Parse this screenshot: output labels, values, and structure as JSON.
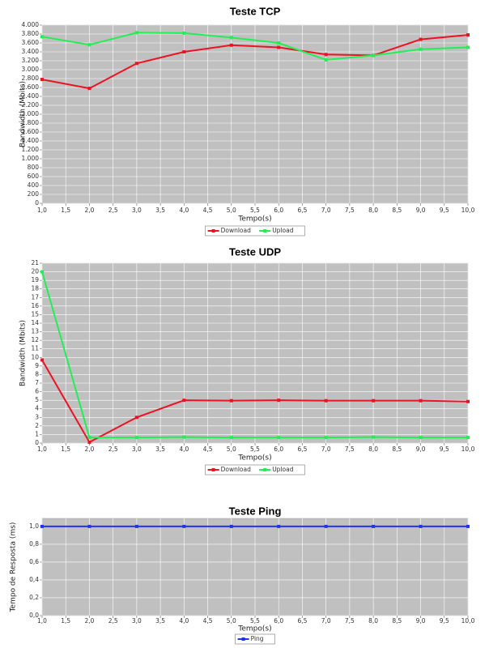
{
  "chart_data": [
    {
      "type": "line",
      "title": "Teste TCP",
      "x_label": "Tempo(s)",
      "y_label": "Bandwidth (Mbits)",
      "x": [
        1,
        2,
        3,
        4,
        5,
        6,
        7,
        8,
        9,
        10
      ],
      "xlim": [
        1,
        10
      ],
      "xticks": [
        {
          "value": 1,
          "label": "1,0"
        },
        {
          "value": 1.5,
          "label": "1,5"
        },
        {
          "value": 2,
          "label": "2,0"
        },
        {
          "value": 2.5,
          "label": "2,5"
        },
        {
          "value": 3,
          "label": "3,0"
        },
        {
          "value": 3.5,
          "label": "3,5"
        },
        {
          "value": 4,
          "label": "4,0"
        },
        {
          "value": 4.5,
          "label": "4,5"
        },
        {
          "value": 5,
          "label": "5,0"
        },
        {
          "value": 5.5,
          "label": "5,5"
        },
        {
          "value": 6,
          "label": "6,0"
        },
        {
          "value": 6.5,
          "label": "6,5"
        },
        {
          "value": 7,
          "label": "7,0"
        },
        {
          "value": 7.5,
          "label": "7,5"
        },
        {
          "value": 8,
          "label": "8,0"
        },
        {
          "value": 8.5,
          "label": "8,5"
        },
        {
          "value": 9,
          "label": "9,0"
        },
        {
          "value": 9.5,
          "label": "9,5"
        },
        {
          "value": 10,
          "label": "10,0"
        }
      ],
      "ylim": [
        0,
        4000
      ],
      "yticks": [
        0,
        200,
        400,
        600,
        800,
        {
          "value": 1000,
          "label": "1.000"
        },
        {
          "value": 1200,
          "label": "1.200"
        },
        {
          "value": 1400,
          "label": "1.400"
        },
        {
          "value": 1600,
          "label": "1.600"
        },
        {
          "value": 1800,
          "label": "1.800"
        },
        {
          "value": 2000,
          "label": "2.000"
        },
        {
          "value": 2200,
          "label": "2.200"
        },
        {
          "value": 2400,
          "label": "2.400"
        },
        {
          "value": 2600,
          "label": "2.600"
        },
        {
          "value": 2800,
          "label": "2.800"
        },
        {
          "value": 3000,
          "label": "3.000"
        },
        {
          "value": 3200,
          "label": "3.200"
        },
        {
          "value": 3400,
          "label": "3.400"
        },
        {
          "value": 3600,
          "label": "3.600"
        },
        {
          "value": 3800,
          "label": "3.800"
        },
        {
          "value": 4000,
          "label": "4.000"
        }
      ],
      "grid": true,
      "legend": "bottom",
      "series": [
        {
          "name": "Download",
          "color": "#ee1122",
          "values": [
            2780,
            2580,
            3140,
            3400,
            3550,
            3500,
            3340,
            3320,
            3680,
            3780
          ]
        },
        {
          "name": "Upload",
          "color": "#22ee55",
          "values": [
            3740,
            3560,
            3830,
            3820,
            3720,
            3600,
            3220,
            3320,
            3460,
            3500
          ]
        }
      ]
    },
    {
      "type": "line",
      "title": "Teste UDP",
      "x_label": "Tempo(s)",
      "y_label": "Bandwidth (Mbits)",
      "x": [
        1,
        2,
        3,
        4,
        5,
        6,
        7,
        8,
        9,
        10
      ],
      "xlim": [
        1,
        10
      ],
      "xticks": [
        {
          "value": 1,
          "label": "1,0"
        },
        {
          "value": 1.5,
          "label": "1,5"
        },
        {
          "value": 2,
          "label": "2,0"
        },
        {
          "value": 2.5,
          "label": "2,5"
        },
        {
          "value": 3,
          "label": "3,0"
        },
        {
          "value": 3.5,
          "label": "3,5"
        },
        {
          "value": 4,
          "label": "4,0"
        },
        {
          "value": 4.5,
          "label": "4,5"
        },
        {
          "value": 5,
          "label": "5,0"
        },
        {
          "value": 5.5,
          "label": "5,5"
        },
        {
          "value": 6,
          "label": "6,0"
        },
        {
          "value": 6.5,
          "label": "6,5"
        },
        {
          "value": 7,
          "label": "7,0"
        },
        {
          "value": 7.5,
          "label": "7,5"
        },
        {
          "value": 8,
          "label": "8,0"
        },
        {
          "value": 8.5,
          "label": "8,5"
        },
        {
          "value": 9,
          "label": "9,0"
        },
        {
          "value": 9.5,
          "label": "9,5"
        },
        {
          "value": 10,
          "label": "10,0"
        }
      ],
      "ylim": [
        0,
        21
      ],
      "yticks": [
        0,
        1,
        2,
        3,
        4,
        5,
        6,
        7,
        8,
        9,
        10,
        11,
        12,
        13,
        14,
        15,
        16,
        17,
        18,
        19,
        20,
        21
      ],
      "grid": true,
      "legend": "bottom",
      "series": [
        {
          "name": "Download",
          "color": "#ee1122",
          "values": [
            9.7,
            0.1,
            3.0,
            5.0,
            4.95,
            5.0,
            4.95,
            4.95,
            4.95,
            4.85
          ]
        },
        {
          "name": "Upload",
          "color": "#22ee55",
          "values": [
            20.0,
            0.65,
            0.65,
            0.7,
            0.65,
            0.65,
            0.65,
            0.7,
            0.65,
            0.65
          ]
        }
      ]
    },
    {
      "type": "line",
      "title": "Teste Ping",
      "x_label": "Tempo(s)",
      "y_label": "Tempo de Resposta (ms)",
      "x": [
        1,
        2,
        3,
        4,
        5,
        6,
        7,
        8,
        9,
        10
      ],
      "xlim": [
        1,
        10
      ],
      "xticks": [
        {
          "value": 1,
          "label": "1,0"
        },
        {
          "value": 1.5,
          "label": "1,5"
        },
        {
          "value": 2,
          "label": "2,0"
        },
        {
          "value": 2.5,
          "label": "2,5"
        },
        {
          "value": 3,
          "label": "3,0"
        },
        {
          "value": 3.5,
          "label": "3,5"
        },
        {
          "value": 4,
          "label": "4,0"
        },
        {
          "value": 4.5,
          "label": "4,5"
        },
        {
          "value": 5,
          "label": "5,0"
        },
        {
          "value": 5.5,
          "label": "5,5"
        },
        {
          "value": 6,
          "label": "6,0"
        },
        {
          "value": 6.5,
          "label": "6,5"
        },
        {
          "value": 7,
          "label": "7,0"
        },
        {
          "value": 7.5,
          "label": "7,5"
        },
        {
          "value": 8,
          "label": "8,0"
        },
        {
          "value": 8.5,
          "label": "8,5"
        },
        {
          "value": 9,
          "label": "9,0"
        },
        {
          "value": 9.5,
          "label": "9,5"
        },
        {
          "value": 10,
          "label": "10,0"
        }
      ],
      "ylim": [
        0,
        1.09
      ],
      "yticks": [
        {
          "value": 0,
          "label": "0,0"
        },
        {
          "value": 0.2,
          "label": "0,2"
        },
        {
          "value": 0.4,
          "label": "0,4"
        },
        {
          "value": 0.6,
          "label": "0,6"
        },
        {
          "value": 0.8,
          "label": "0,8"
        },
        {
          "value": 1,
          "label": "1,0"
        }
      ],
      "grid": true,
      "legend": "bottom",
      "series": [
        {
          "name": "Ping",
          "color": "#2233ee",
          "values": [
            1,
            1,
            1,
            1,
            1,
            1,
            1,
            1,
            1,
            1
          ]
        }
      ]
    }
  ]
}
